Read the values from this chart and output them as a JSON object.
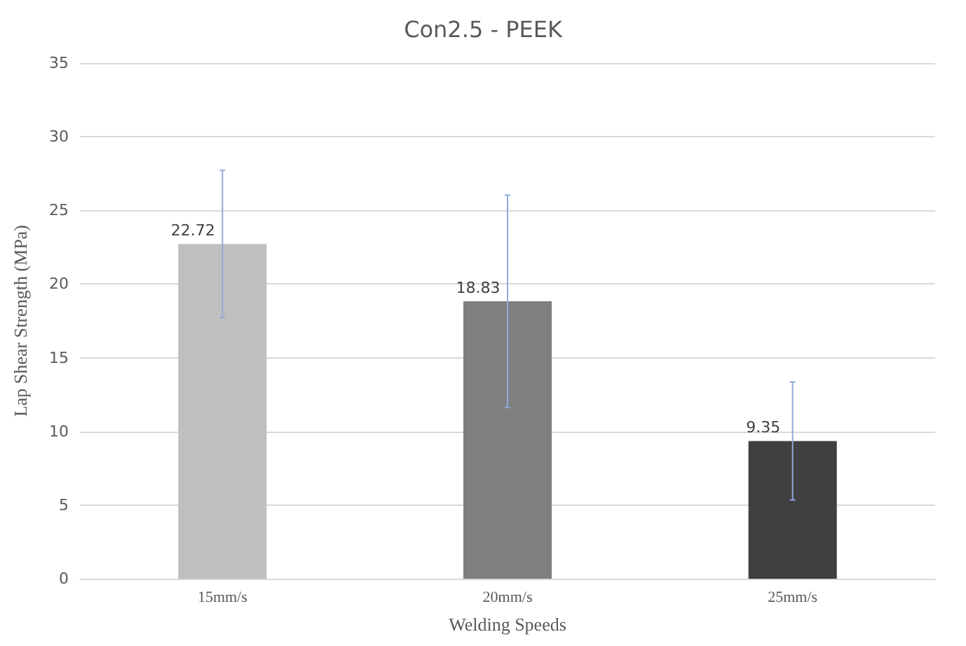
{
  "chart_data": {
    "type": "bar",
    "title": "Con2.5 - PEEK",
    "xlabel": "Welding Speeds",
    "ylabel": "Lap Shear Strength (MPa)",
    "categories": [
      "15mm/s",
      "20mm/s",
      "25mm/s"
    ],
    "values": [
      22.72,
      18.83,
      9.35
    ],
    "colors": [
      "#bfbfbf",
      "#7f7f7f",
      "#404040"
    ],
    "errors": [
      5,
      7.2,
      4
    ],
    "ylim": [
      0,
      35
    ],
    "yticks": [
      0,
      5,
      10,
      15,
      20,
      25,
      30,
      35
    ],
    "grid": "y",
    "data_labels": true
  }
}
